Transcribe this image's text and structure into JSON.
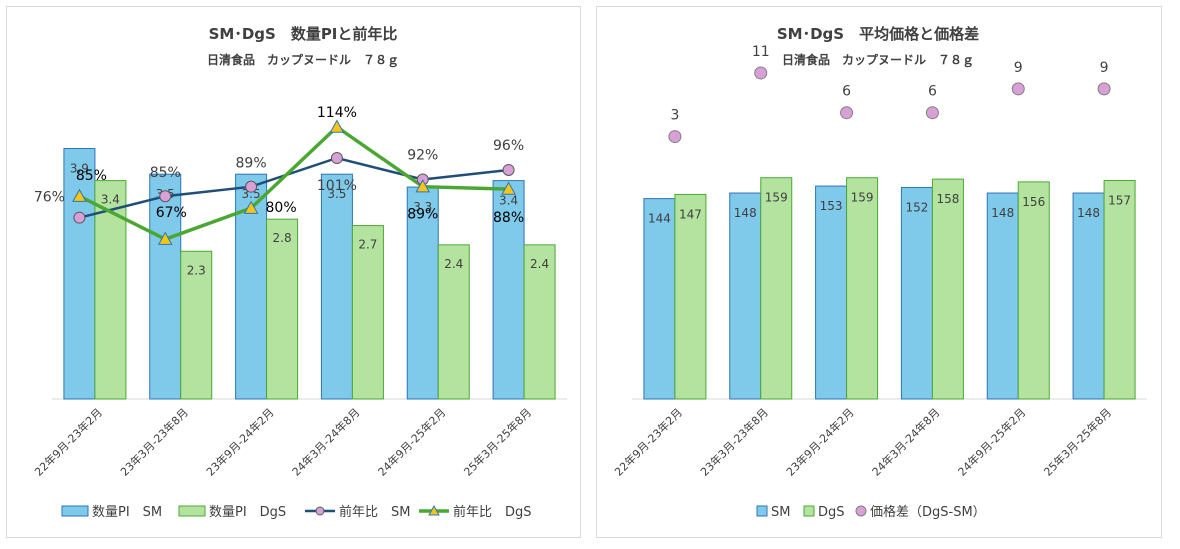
{
  "chart_data": [
    {
      "type": "bar+line",
      "title": "SM･DgS　数量PIと前年比",
      "subtitle": "日清食品　カップヌードル　７８ｇ",
      "categories": [
        "22年9月-23年2月",
        "23年3月-23年8月",
        "23年9月-24年2月",
        "24年3月-24年8月",
        "24年9月-25年2月",
        "25年3月-25年8月"
      ],
      "bar_series": [
        {
          "name": "数量PI　SM",
          "values": [
            3.9,
            3.5,
            3.5,
            3.5,
            3.3,
            3.4
          ],
          "labels": [
            "3.9",
            "3.5",
            "3.5",
            "3.5",
            "3.3",
            "3.4"
          ],
          "color": "#7fc9ea",
          "stroke": "#2e75b6"
        },
        {
          "name": "数量PI　DgS",
          "values": [
            3.4,
            2.3,
            2.8,
            2.7,
            2.4,
            2.4
          ],
          "labels": [
            "3.4",
            "2.3",
            "2.8",
            "2.7",
            "2.4",
            "2.4"
          ],
          "color": "#b4e3a0",
          "stroke": "#4aa832"
        }
      ],
      "line_series": [
        {
          "name": "前年比　SM",
          "values": [
            76,
            85,
            89,
            101,
            92,
            96
          ],
          "labels": [
            "76%",
            "85%",
            "89%",
            "101%",
            "92%",
            "96%"
          ],
          "color": "#1f4e79",
          "marker_fill": "#d9a0d8",
          "marker": "circle"
        },
        {
          "name": "前年比　DgS",
          "values": [
            85,
            67,
            80,
            114,
            89,
            88
          ],
          "labels": [
            "85%",
            "67%",
            "80%",
            "114%",
            "89%",
            "88%"
          ],
          "color": "#4aa832",
          "marker_fill": "#f5c518",
          "marker": "triangle"
        }
      ],
      "bar_ylim": [
        0,
        5.2
      ],
      "line_ylim": [
        0,
        140
      ],
      "legend_position": "bottom"
    },
    {
      "type": "bar+scatter",
      "title": "SM･DgS　平均価格と価格差",
      "subtitle": "日清食品　カップヌードル　７８ｇ",
      "categories": [
        "22年9月-23年2月",
        "23年3月-23年8月",
        "23年9月-24年2月",
        "24年3月-24年8月",
        "24年9月-25年2月",
        "25年3月-25年8月"
      ],
      "bar_series": [
        {
          "name": "SM",
          "values": [
            144,
            148,
            153,
            152,
            148,
            148
          ],
          "labels": [
            "144",
            "148",
            "153",
            "152",
            "148",
            "148"
          ],
          "color": "#7fc9ea",
          "stroke": "#2e75b6"
        },
        {
          "name": "DgS",
          "values": [
            147,
            159,
            159,
            158,
            156,
            157
          ],
          "labels": [
            "147",
            "159",
            "159",
            "158",
            "156",
            "157"
          ],
          "color": "#b4e3a0",
          "stroke": "#4aa832"
        }
      ],
      "dot_series": {
        "name": "価格差（DgS-SM）",
        "values": [
          3,
          11,
          6,
          6,
          9,
          9
        ],
        "labels": [
          "3",
          "11",
          "6",
          "6",
          "9",
          "9"
        ],
        "marker_fill": "#d9a0d8",
        "marker_stroke": "#7f7f7f"
      },
      "bar_ylim": [
        0,
        240
      ],
      "dot_ylim": [
        -30,
        12
      ],
      "legend_position": "bottom"
    }
  ]
}
